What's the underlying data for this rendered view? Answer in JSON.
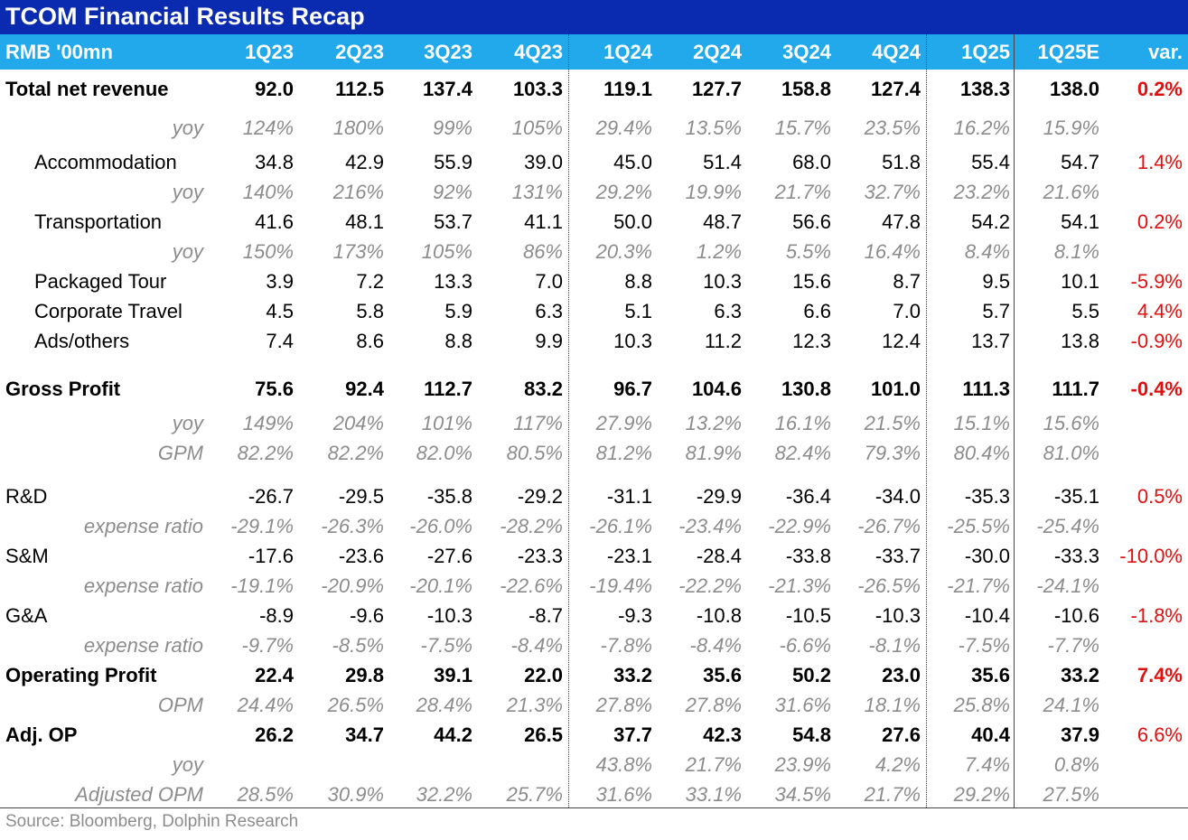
{
  "title": "TCOM Financial Results Recap",
  "header": {
    "unit": "RMB '00mn",
    "periods": [
      "1Q23",
      "2Q23",
      "3Q23",
      "4Q23",
      "1Q24",
      "2Q24",
      "3Q24",
      "4Q24",
      "1Q25",
      "1Q25E"
    ],
    "var": "var."
  },
  "rows": [
    {
      "style": "bold",
      "label": "Total net revenue",
      "values": [
        "92.0",
        "112.5",
        "137.4",
        "103.3",
        "119.1",
        "127.7",
        "158.8",
        "127.4",
        "138.3",
        "138.0"
      ],
      "var": "0.2%"
    },
    {
      "style": "sub",
      "label": "yoy",
      "values": [
        "124%",
        "180%",
        "99%",
        "105%",
        "29.4%",
        "13.5%",
        "15.7%",
        "23.5%",
        "16.2%",
        "15.9%"
      ],
      "var": ""
    },
    {
      "style": "indent",
      "label": "Accommodation",
      "values": [
        "34.8",
        "42.9",
        "55.9",
        "39.0",
        "45.0",
        "51.4",
        "68.0",
        "51.8",
        "55.4",
        "54.7"
      ],
      "var": "1.4%"
    },
    {
      "style": "sub",
      "label": "yoy",
      "values": [
        "140%",
        "216%",
        "92%",
        "131%",
        "29.2%",
        "19.9%",
        "21.7%",
        "32.7%",
        "23.2%",
        "21.6%"
      ],
      "var": ""
    },
    {
      "style": "indent",
      "label": "Transportation",
      "values": [
        "41.6",
        "48.1",
        "53.7",
        "41.1",
        "50.0",
        "48.7",
        "56.6",
        "47.8",
        "54.2",
        "54.1"
      ],
      "var": "0.2%"
    },
    {
      "style": "sub",
      "label": "yoy",
      "values": [
        "150%",
        "173%",
        "105%",
        "86%",
        "20.3%",
        "1.2%",
        "5.5%",
        "16.4%",
        "8.4%",
        "8.1%"
      ],
      "var": ""
    },
    {
      "style": "indent",
      "label": "Packaged Tour",
      "values": [
        "3.9",
        "7.2",
        "13.3",
        "7.0",
        "8.8",
        "10.3",
        "15.6",
        "8.7",
        "9.5",
        "10.1"
      ],
      "var": "-5.9%"
    },
    {
      "style": "indent",
      "label": "Corporate Travel",
      "values": [
        "4.5",
        "5.8",
        "5.9",
        "6.3",
        "5.1",
        "6.3",
        "6.6",
        "7.0",
        "5.7",
        "5.5"
      ],
      "var": "4.4%"
    },
    {
      "style": "indent",
      "label": "Ads/others",
      "values": [
        "7.4",
        "8.6",
        "8.8",
        "9.9",
        "10.3",
        "11.2",
        "12.3",
        "12.4",
        "13.7",
        "13.8"
      ],
      "var": "-0.9%"
    },
    {
      "style": "bold",
      "label": "Gross Profit",
      "values": [
        "75.6",
        "92.4",
        "112.7",
        "83.2",
        "96.7",
        "104.6",
        "130.8",
        "101.0",
        "111.3",
        "111.7"
      ],
      "var": "-0.4%"
    },
    {
      "style": "sub",
      "label": "yoy",
      "values": [
        "149%",
        "204%",
        "101%",
        "117%",
        "27.9%",
        "13.2%",
        "16.1%",
        "21.5%",
        "15.1%",
        "15.6%"
      ],
      "var": ""
    },
    {
      "style": "sub",
      "label": "GPM",
      "values": [
        "82.2%",
        "82.2%",
        "82.0%",
        "80.5%",
        "81.2%",
        "81.9%",
        "82.4%",
        "79.3%",
        "80.4%",
        "81.0%"
      ],
      "var": ""
    },
    {
      "style": "plain",
      "label": "R&D",
      "values": [
        "-26.7",
        "-29.5",
        "-35.8",
        "-29.2",
        "-31.1",
        "-29.9",
        "-36.4",
        "-34.0",
        "-35.3",
        "-35.1"
      ],
      "var": "0.5%"
    },
    {
      "style": "sub",
      "label": "expense ratio",
      "values": [
        "-29.1%",
        "-26.3%",
        "-26.0%",
        "-28.2%",
        "-26.1%",
        "-23.4%",
        "-22.9%",
        "-26.7%",
        "-25.5%",
        "-25.4%"
      ],
      "var": ""
    },
    {
      "style": "plain",
      "label": "S&M",
      "values": [
        "-17.6",
        "-23.6",
        "-27.6",
        "-23.3",
        "-23.1",
        "-28.4",
        "-33.8",
        "-33.7",
        "-30.0",
        "-33.3"
      ],
      "var": "-10.0%"
    },
    {
      "style": "sub",
      "label": "expense ratio",
      "values": [
        "-19.1%",
        "-20.9%",
        "-20.1%",
        "-22.6%",
        "-19.4%",
        "-22.2%",
        "-21.3%",
        "-26.5%",
        "-21.7%",
        "-24.1%"
      ],
      "var": ""
    },
    {
      "style": "plain",
      "label": "G&A",
      "values": [
        "-8.9",
        "-9.6",
        "-10.3",
        "-8.7",
        "-9.3",
        "-10.8",
        "-10.5",
        "-10.3",
        "-10.4",
        "-10.6"
      ],
      "var": "-1.8%"
    },
    {
      "style": "sub",
      "label": "expense ratio",
      "values": [
        "-9.7%",
        "-8.5%",
        "-7.5%",
        "-8.4%",
        "-7.8%",
        "-8.4%",
        "-6.6%",
        "-8.1%",
        "-7.5%",
        "-7.7%"
      ],
      "var": ""
    },
    {
      "style": "bold",
      "label": "Operating Profit",
      "values": [
        "22.4",
        "29.8",
        "39.1",
        "22.0",
        "33.2",
        "35.6",
        "50.2",
        "23.0",
        "35.6",
        "33.2"
      ],
      "var": "7.4%"
    },
    {
      "style": "sub",
      "label": "OPM",
      "values": [
        "24.4%",
        "26.5%",
        "28.4%",
        "21.3%",
        "27.8%",
        "27.8%",
        "31.6%",
        "18.1%",
        "25.8%",
        "24.1%"
      ],
      "var": ""
    },
    {
      "style": "bold",
      "label": "Adj. OP",
      "values": [
        "26.2",
        "34.7",
        "44.2",
        "26.5",
        "37.7",
        "42.3",
        "54.8",
        "27.6",
        "40.4",
        "37.9"
      ],
      "var": "6.6%",
      "var_normal": true
    },
    {
      "style": "sub",
      "label": "yoy",
      "values": [
        "",
        "",
        "",
        "",
        "43.8%",
        "21.7%",
        "23.9%",
        "4.2%",
        "7.4%",
        "0.8%"
      ],
      "var": ""
    },
    {
      "style": "sub",
      "label": "Adjusted OPM",
      "values": [
        "28.5%",
        "30.9%",
        "32.2%",
        "25.7%",
        "31.6%",
        "33.1%",
        "34.5%",
        "21.7%",
        "29.2%",
        "27.5%"
      ],
      "var": ""
    }
  ],
  "source": "Source:  Bloomberg, Dolphin Research"
}
